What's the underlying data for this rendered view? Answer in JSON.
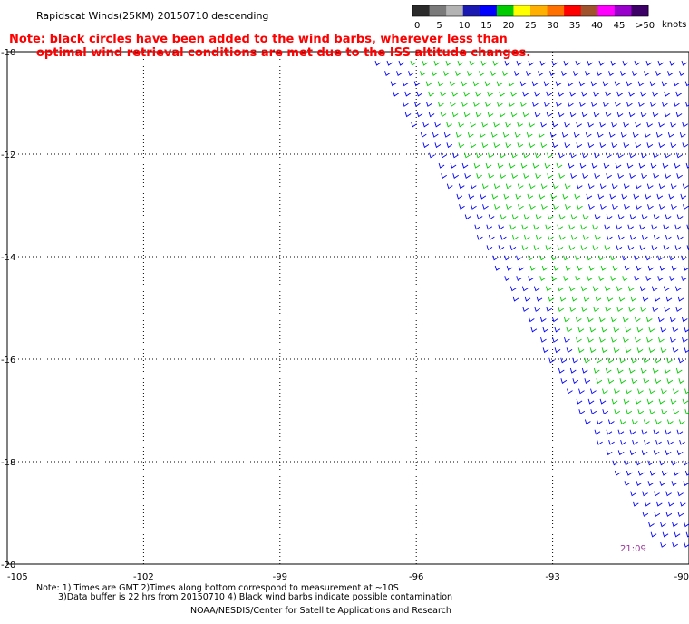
{
  "header": {
    "title": "Rapidscat Winds(25KM) 20150710 descending",
    "note_line1": "Note: black circles have been added to the wind barbs, wherever less than",
    "note_line2": "optimal wind retrieval conditions are met due to the ISS altitude changes."
  },
  "legend": {
    "units": "knots",
    "labels": [
      "0",
      "5",
      "10",
      "15",
      "20",
      "25",
      "30",
      "35",
      "40",
      "45",
      ">50"
    ],
    "colors": [
      "#2b2b2b",
      "#7a7a7a",
      "#b3b3b3",
      "#1a1ab3",
      "#0000ff",
      "#00cc00",
      "#ffff00",
      "#ffb000",
      "#ff7000",
      "#ff0000",
      "#a0522d",
      "#ff00ff",
      "#9900cc",
      "#3d0066"
    ]
  },
  "map": {
    "lat_labels": [
      "-10",
      "-12",
      "-14",
      "-16",
      "-18",
      "-20"
    ],
    "lon_labels": [
      "-105",
      "-102",
      "-99",
      "-96",
      "-93",
      "-90"
    ],
    "lat_values": [
      -10,
      -12,
      -14,
      -16,
      -18,
      -20
    ],
    "lon_values": [
      -105,
      -102,
      -99,
      -96,
      -93,
      -90
    ],
    "lon_range": [
      -105,
      -90
    ],
    "lat_range": [
      -20,
      -10
    ],
    "grid": "dotted",
    "time_label": "21:09",
    "swath_colors": {
      "low": "#0000ff",
      "mid": "#00cc00"
    }
  },
  "footer": {
    "note_line1": "Note: 1) Times are GMT 2)Times along bottom correspond to measurement at ~10S",
    "note_line2": "3)Data buffer is 22 hrs from 20150710 4) Black wind barbs indicate possible contamination",
    "credit": "NOAA/NESDIS/Center for Satellite Applications and Research"
  }
}
